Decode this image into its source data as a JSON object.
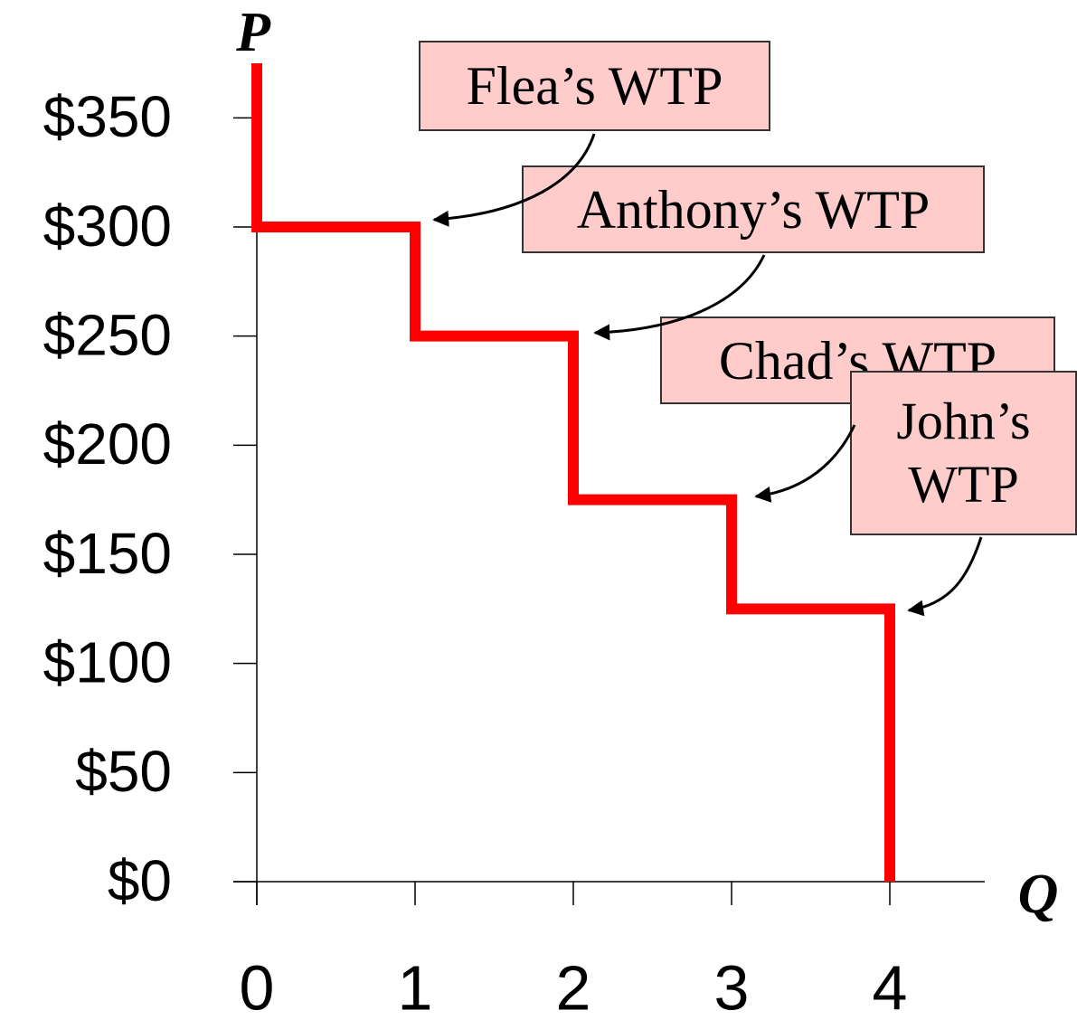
{
  "chart_data": {
    "type": "step",
    "x_label": "Q",
    "y_label": "P",
    "series": [
      {
        "color": "#ff0000",
        "values": [
          300,
          250,
          175,
          125
        ]
      }
    ],
    "annotations": [
      "Flea’s WTP",
      "Anthony’s WTP",
      "Chad’s WTP",
      "John’s WTP"
    ],
    "xlim": [
      0,
      4.6
    ],
    "xticks": [
      0,
      1,
      2,
      3,
      4
    ],
    "ylim": [
      0,
      375
    ],
    "yticks": [
      {
        "value": 0,
        "label": "$0"
      },
      {
        "value": 50,
        "label": "$50"
      },
      {
        "value": 100,
        "label": "$100"
      },
      {
        "value": 150,
        "label": "$150"
      },
      {
        "value": 200,
        "label": "$200"
      },
      {
        "value": 250,
        "label": "$250"
      },
      {
        "value": 300,
        "label": "$300"
      },
      {
        "value": 350,
        "label": "$350"
      }
    ],
    "grid": false
  }
}
